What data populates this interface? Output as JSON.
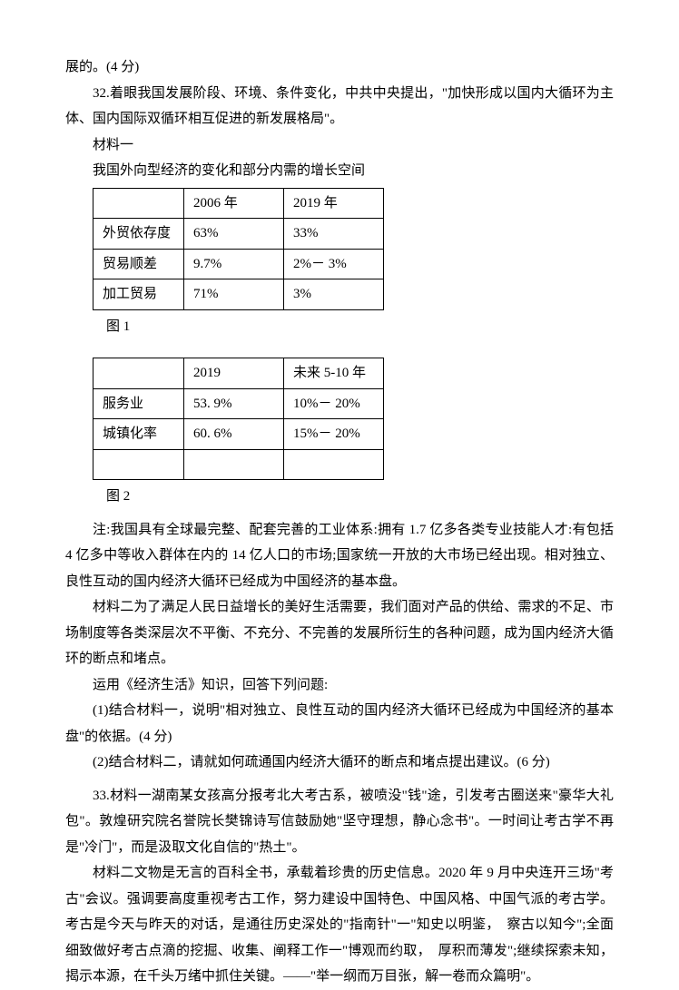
{
  "top": {
    "line1": "展的。(4 分)"
  },
  "q32": {
    "intro": "32.着眼我国发展阶段、环境、条件变化，中共中央提出，\"加快形成以国内大循环为主体、国内国际双循环相互促进的新发展格局\"。",
    "material1_label": "材料一",
    "material1_title": "我国外向型经济的变化和部分内需的增长空间",
    "table1": {
      "header": [
        "",
        "2006 年",
        "2019 年"
      ],
      "rows": [
        [
          "外贸依存度",
          "63%",
          "33%"
        ],
        [
          "贸易顺差",
          "9.7%",
          "2%－ 3%"
        ],
        [
          "加工贸易",
          "71%",
          "3%"
        ]
      ]
    },
    "fig1_label": "图 1",
    "table2": {
      "header": [
        "",
        "2019",
        "未来 5-10 年"
      ],
      "rows": [
        [
          "服务业",
          "53. 9%",
          "10%－ 20%"
        ],
        [
          "城镇化率",
          "60. 6%",
          "15%－ 20%"
        ],
        [
          "",
          "",
          ""
        ]
      ]
    },
    "fig2_label": "图 2",
    "note": "注:我国具有全球最完整、配套完善的工业体系:拥有 1.7 亿多各类专业技能人才:有包括 4 亿多中等收入群体在内的 14 亿人口的市场;国家统一开放的大市场已经出现。相对独立、良性互动的国内经济大循环已经成为中国经济的基本盘。",
    "material2": "材料二为了满足人民日益增长的美好生活需要，我们面对产品的供给、需求的不足、市场制度等各类深层次不平衡、不充分、不完善的发展所衍生的各种问题，成为国内经济大循环的断点和堵点。",
    "instruct": "运用《经济生活》知识，回答下列问题:",
    "sub1": "(1)结合材料一，说明\"相对独立、良性互动的国内经济大循环已经成为中国经济的基本盘\"的依据。(4 分)",
    "sub2": "(2)结合材料二，请就如何疏通国内经济大循环的断点和堵点提出建议。(6 分)"
  },
  "q33": {
    "p1": "33.材料一湖南某女孩高分报考北大考古系，被喷没\"钱\"途，引发考古圈送来\"豪华大礼包\"。敦煌研究院名誉院长樊锦诗写信鼓励她\"坚守理想，静心念书\"。一时间让考古学不再是\"冷门\"，而是汲取文化自信的\"热土\"。",
    "p2": "材料二文物是无言的百科全书，承载着珍贵的历史信息。2020 年 9 月中央连开三场\"考古\"会议。强调要高度重视考古工作，努力建设中国特色、中国风格、中国气派的考古学。考古是今天与昨天的对话，是通往历史深处的\"指南针\"一\"知史以明鉴，　察古以知今\";全面细致做好考古点滴的挖掘、收集、阐释工作一\"博观而约取，　厚积而薄发\";继续探索未知，揭示本源，在千头万绪中抓住关键。——\"举一纲而万目张，解一卷而众篇明\"。"
  }
}
